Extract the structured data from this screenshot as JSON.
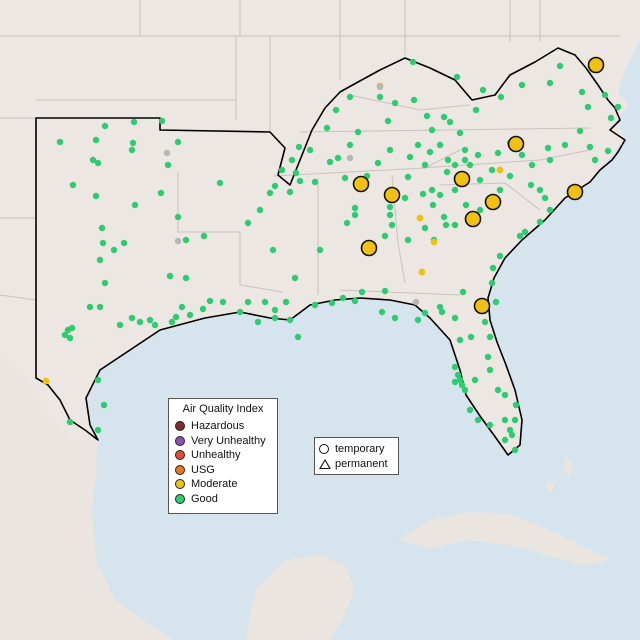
{
  "legend": {
    "title": "Air Quality Index",
    "categories": [
      {
        "label": "Hazardous",
        "color": "#7e2b2b"
      },
      {
        "label": "Very Unhealthy",
        "color": "#8f4fb3"
      },
      {
        "label": "Unhealthy",
        "color": "#e84a2f"
      },
      {
        "label": "USG",
        "color": "#e8781f"
      },
      {
        "label": "Moderate",
        "color": "#f2c012"
      },
      {
        "label": "Good",
        "color": "#2ecc71"
      }
    ]
  },
  "type_legend": {
    "temporary": "temporary",
    "permanent": "permanent"
  },
  "colors": {
    "water": "#d6e4ee",
    "land": "#ece7e3",
    "border": "#c9c2bd",
    "outline": "#000000",
    "no_data": "#b7b7b7"
  }
}
